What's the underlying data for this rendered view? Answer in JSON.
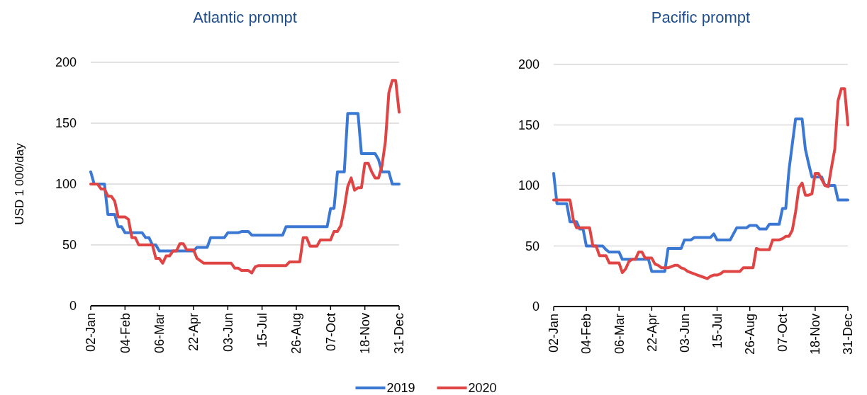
{
  "chart_data": [
    {
      "type": "line",
      "title": "Atlantic prompt",
      "ylabel": "USD 1 000/day",
      "categories": [
        "02-Jan",
        null,
        null,
        null,
        null,
        null,
        null,
        null,
        null,
        null,
        "04-Feb",
        null,
        null,
        null,
        null,
        null,
        null,
        null,
        null,
        null,
        "06-Mar",
        null,
        null,
        null,
        null,
        null,
        null,
        null,
        null,
        null,
        "22-Apr",
        null,
        null,
        null,
        null,
        null,
        null,
        null,
        null,
        null,
        "03-Jun",
        null,
        null,
        null,
        null,
        null,
        null,
        null,
        null,
        null,
        "15-Jul",
        null,
        null,
        null,
        null,
        null,
        null,
        null,
        null,
        null,
        "26-Aug",
        null,
        null,
        null,
        null,
        null,
        null,
        null,
        null,
        null,
        "07-Oct",
        null,
        null,
        null,
        null,
        null,
        null,
        null,
        null,
        null,
        "18-Nov",
        null,
        null,
        null,
        null,
        null,
        null,
        null,
        null,
        null,
        "31-Dec"
      ],
      "ylim": [
        0,
        200
      ],
      "yticks": [
        0,
        50,
        100,
        150,
        200
      ],
      "grid": "y",
      "legend": "bottom",
      "marker": "none",
      "line_style": "solid",
      "series": [
        {
          "name": "2019",
          "color": "#3a78d4",
          "values": [
            110,
            100,
            100,
            100,
            100,
            75,
            75,
            75,
            65,
            65,
            60,
            60,
            60,
            60,
            60,
            60,
            56,
            56,
            50,
            50,
            45,
            45,
            45,
            45,
            45,
            45,
            45,
            45,
            45,
            45,
            45,
            48,
            48,
            48,
            48,
            56,
            56,
            56,
            56,
            56,
            60,
            60,
            60,
            60,
            61,
            61,
            61,
            58,
            58,
            58,
            58,
            58,
            58,
            58,
            58,
            58,
            58,
            65,
            65,
            65,
            65,
            65,
            65,
            65,
            65,
            65,
            65,
            65,
            65,
            65,
            80,
            80,
            110,
            110,
            110,
            158,
            158,
            158,
            158,
            125,
            125,
            125,
            125,
            125,
            120,
            110,
            110,
            110,
            100,
            100,
            100
          ]
        },
        {
          "name": "2020",
          "color": "#e04545",
          "values": [
            100,
            100,
            100,
            96,
            96,
            90,
            90,
            86,
            73,
            73,
            73,
            71,
            56,
            56,
            50,
            50,
            50,
            50,
            50,
            39,
            39,
            35,
            41,
            41,
            45,
            45,
            51,
            51,
            46,
            46,
            46,
            39,
            37,
            35,
            35,
            35,
            35,
            35,
            35,
            35,
            35,
            35,
            31,
            31,
            29,
            29,
            29,
            27,
            32,
            33,
            33,
            33,
            33,
            33,
            33,
            33,
            33,
            33,
            36,
            36,
            36,
            36,
            56,
            56,
            49,
            49,
            49,
            54,
            54,
            54,
            54,
            61,
            61,
            66,
            80,
            98,
            105,
            95,
            97,
            97,
            117,
            117,
            110,
            105,
            105,
            115,
            135,
            175,
            185,
            185,
            159
          ]
        }
      ]
    },
    {
      "type": "line",
      "title": "Pacific prompt",
      "categories": [
        "02-Jan",
        null,
        null,
        null,
        null,
        null,
        null,
        null,
        null,
        null,
        "04-Feb",
        null,
        null,
        null,
        null,
        null,
        null,
        null,
        null,
        null,
        "06-Mar",
        null,
        null,
        null,
        null,
        null,
        null,
        null,
        null,
        null,
        "22-Apr",
        null,
        null,
        null,
        null,
        null,
        null,
        null,
        null,
        null,
        "03-Jun",
        null,
        null,
        null,
        null,
        null,
        null,
        null,
        null,
        null,
        "15-Jul",
        null,
        null,
        null,
        null,
        null,
        null,
        null,
        null,
        null,
        "26-Aug",
        null,
        null,
        null,
        null,
        null,
        null,
        null,
        null,
        null,
        "07-Oct",
        null,
        null,
        null,
        null,
        null,
        null,
        null,
        null,
        null,
        "18-Nov",
        null,
        null,
        null,
        null,
        null,
        null,
        null,
        null,
        null,
        "31-Dec"
      ],
      "ylim": [
        0,
        200
      ],
      "yticks": [
        0,
        50,
        100,
        150,
        200
      ],
      "grid": "y",
      "marker": "none",
      "line_style": "solid",
      "series": [
        {
          "color": "#3a78d4",
          "values": [
            110,
            85,
            85,
            85,
            85,
            70,
            70,
            70,
            64,
            64,
            50,
            50,
            50,
            50,
            50,
            50,
            47,
            45,
            45,
            45,
            45,
            39,
            39,
            39,
            39,
            39,
            39,
            39,
            39,
            39,
            29,
            29,
            29,
            29,
            29,
            48,
            48,
            48,
            48,
            48,
            55,
            55,
            55,
            57,
            57,
            57,
            57,
            57,
            57,
            60,
            55,
            55,
            55,
            55,
            55,
            60,
            65,
            65,
            65,
            65,
            67,
            67,
            67,
            64,
            64,
            64,
            68,
            68,
            68,
            68,
            81,
            81,
            113,
            134,
            155,
            155,
            155,
            130,
            118,
            107,
            107,
            107,
            107,
            100,
            100,
            100,
            100,
            88,
            88,
            88,
            88
          ]
        },
        {
          "color": "#e04545",
          "values": [
            88,
            88,
            88,
            88,
            88,
            88,
            72,
            65,
            65,
            65,
            65,
            65,
            50,
            50,
            42,
            42,
            42,
            36,
            36,
            36,
            36,
            28,
            31,
            37,
            39,
            39,
            45,
            45,
            40,
            40,
            40,
            35,
            34,
            32,
            32,
            32,
            33,
            34,
            34,
            32,
            31,
            29,
            28,
            27,
            26,
            25,
            24,
            23,
            25,
            26,
            26,
            27,
            29,
            29,
            29,
            29,
            29,
            29,
            32,
            32,
            32,
            32,
            48,
            47,
            47,
            47,
            47,
            55,
            55,
            55,
            56,
            58,
            58,
            63,
            78,
            98,
            102,
            92,
            92,
            93,
            110,
            110,
            105,
            100,
            99,
            115,
            130,
            170,
            180,
            180,
            150
          ]
        }
      ]
    }
  ]
}
